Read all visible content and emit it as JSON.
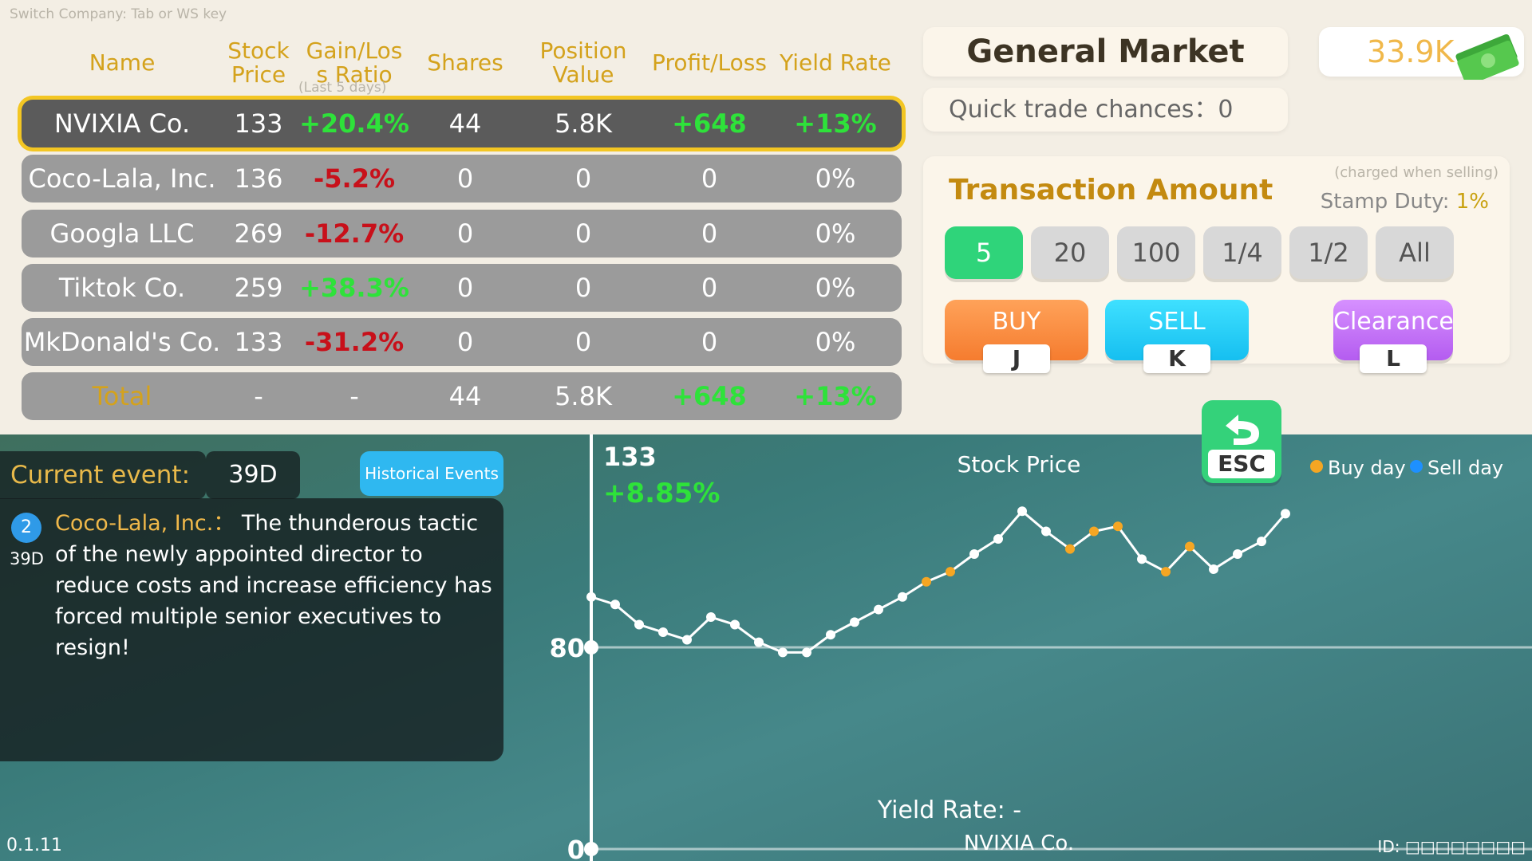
{
  "hint": "Switch Company: Tab or WS key",
  "table": {
    "headers": [
      "Name",
      "Stock Price",
      "Gain/Loss Ratio",
      "Shares",
      "Position Value",
      "Profit/Loss",
      "Yield Rate"
    ],
    "subheader": "(Last 5 days)",
    "rows": [
      [
        "NVIXIA Co.",
        "133",
        "+20.4%",
        "44",
        "5.8K",
        "+648",
        "+13%"
      ],
      [
        "Coco-Lala, Inc.",
        "136",
        "-5.2%",
        "0",
        "0",
        "0",
        "0%"
      ],
      [
        "Googla LLC",
        "269",
        "-12.7%",
        "0",
        "0",
        "0",
        "0%"
      ],
      [
        "Tiktok Co.",
        "259",
        "+38.3%",
        "0",
        "0",
        "0",
        "0%"
      ],
      [
        "MkDonald's Co.",
        "133",
        "-31.2%",
        "0",
        "0",
        "0",
        "0%"
      ],
      [
        "Total",
        "-",
        "-",
        "44",
        "5.8K",
        "+648",
        "+13%"
      ]
    ]
  },
  "market": {
    "title": "General Market",
    "money": "33.9K",
    "quick_trade": "Quick trade chances：0"
  },
  "transaction": {
    "title": "Transaction Amount",
    "note": "(charged when selling)",
    "stamp_duty_label": "Stamp Duty:",
    "stamp_duty": "1%",
    "amounts": [
      "5",
      "20",
      "100",
      "1/4",
      "1/2",
      "All"
    ]
  },
  "actions": [
    {
      "label": "BUY",
      "key": "J"
    },
    {
      "label": "SELL",
      "key": "K"
    },
    {
      "label": "Clearance",
      "key": "L"
    }
  ],
  "esc": "ESC",
  "event": {
    "label": "Current event:",
    "days": "39D",
    "button": "Historical Events",
    "items": [
      {
        "badge": "2",
        "days": "39D",
        "company": "Coco-Lala, Inc.：",
        "text": "The thunderous tactic of the newly appointed director to reduce costs and increase efficiency has forced multiple senior executives to resign!"
      }
    ]
  },
  "chart_data": {
    "type": "line",
    "title": "Stock Price",
    "current": "133",
    "change": "+8.85%",
    "values": [
      100,
      97,
      89,
      86,
      83,
      92,
      89,
      82,
      78,
      78,
      85,
      90,
      95,
      100,
      106,
      110,
      117,
      123,
      134,
      126,
      119,
      126,
      128,
      115,
      110,
      120,
      111,
      117,
      122,
      133
    ],
    "color": "#ffffff",
    "point_colors": [
      "#ffffff",
      "#ffffff",
      "#ffffff",
      "#ffffff",
      "#ffffff",
      "#ffffff",
      "#ffffff",
      "#ffffff",
      "#ffffff",
      "#ffffff",
      "#ffffff",
      "#ffffff",
      "#ffffff",
      "#ffffff",
      "#f5a623",
      "#f5a623",
      "#ffffff",
      "#ffffff",
      "#ffffff",
      "#ffffff",
      "#f5a623",
      "#f5a623",
      "#f5a623",
      "#ffffff",
      "#f5a623",
      "#f5a623",
      "#ffffff",
      "#ffffff",
      "#ffffff",
      "#ffffff"
    ],
    "ylim": [
      0,
      160
    ],
    "yticks": [
      0,
      80
    ],
    "legend": [
      {
        "name": "Buy day",
        "color": "#f5a623"
      },
      {
        "name": "Sell day",
        "color": "#1e90ff"
      }
    ],
    "yield_label": "Yield Rate: -",
    "company": "NVIXIA Co."
  },
  "version": "0.1.11",
  "id": "ID: □□□□□□□□"
}
